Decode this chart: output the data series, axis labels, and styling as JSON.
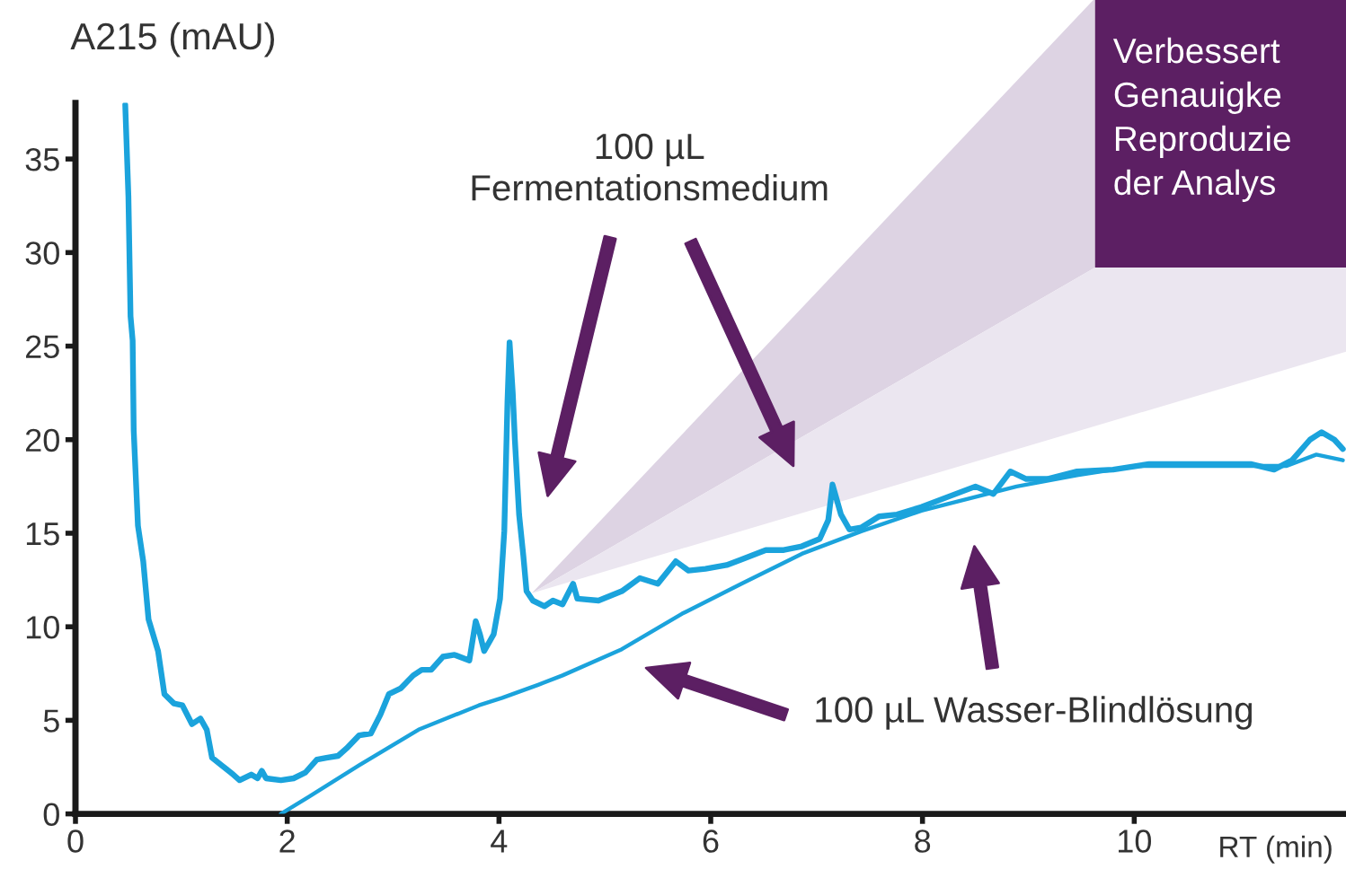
{
  "chart_data": {
    "type": "line",
    "ylabel": "A215 (mAU)",
    "xlabel": "RT (min)",
    "xlim": [
      0,
      12
    ],
    "xticks": [
      0,
      2,
      4,
      6,
      8,
      10
    ],
    "ylim": [
      0,
      38
    ],
    "yticks": [
      0,
      5,
      10,
      15,
      20,
      25,
      30,
      35
    ],
    "grid": false,
    "legend": false,
    "annotations": [
      "Verbessert\nGenauigke\nReproduzie\nder Analys",
      "100 µL\nFermentationsmedium",
      "100 µL Wasser-Blindlösung"
    ],
    "series": [
      {
        "color": "#1ba3dc",
        "x": [
          0.47,
          0.5,
          0.52,
          0.54,
          0.55,
          0.59,
          0.64,
          0.69,
          0.78,
          0.84,
          0.93,
          1.01,
          1.1,
          1.18,
          1.24,
          1.29,
          1.38,
          1.49,
          1.55,
          1.66,
          1.72,
          1.76,
          1.8,
          1.94,
          2.06,
          2.17,
          2.28,
          2.37,
          2.48,
          2.56,
          2.68,
          2.79,
          2.88,
          2.96,
          3.07,
          3.19,
          3.27,
          3.36,
          3.47,
          3.58,
          3.72,
          3.78,
          3.82,
          3.86,
          3.95,
          4.01,
          4.05,
          4.08,
          4.1,
          4.13,
          4.15,
          4.19,
          4.23,
          4.26,
          4.32,
          4.43,
          4.51,
          4.6,
          4.7,
          4.74,
          4.94,
          5.16,
          5.33,
          5.5,
          5.67,
          5.79,
          5.95,
          6.15,
          6.29,
          6.52,
          6.69,
          6.86,
          7.03,
          7.11,
          7.15,
          7.23,
          7.31,
          7.42,
          7.59,
          7.76,
          7.99,
          8.22,
          8.5,
          8.67,
          8.83,
          8.98,
          9.18,
          9.46,
          9.8,
          10.14,
          10.61,
          11.1,
          11.32,
          11.49,
          11.66,
          11.77,
          11.89,
          11.97
        ],
        "values": [
          37.9,
          33.0,
          26.6,
          25.3,
          20.5,
          15.4,
          13.5,
          10.4,
          8.7,
          6.4,
          5.9,
          5.8,
          4.8,
          5.1,
          4.5,
          3.0,
          2.6,
          2.1,
          1.8,
          2.1,
          1.9,
          2.3,
          1.9,
          1.8,
          1.9,
          2.2,
          2.9,
          3.0,
          3.1,
          3.5,
          4.2,
          4.3,
          5.3,
          6.4,
          6.7,
          7.4,
          7.7,
          7.7,
          8.4,
          8.5,
          8.2,
          10.3,
          9.6,
          8.7,
          9.6,
          11.5,
          15.1,
          22.0,
          25.2,
          22.5,
          20.0,
          16.0,
          13.8,
          11.9,
          11.4,
          11.1,
          11.4,
          11.2,
          12.3,
          11.5,
          11.4,
          11.9,
          12.6,
          12.3,
          13.5,
          13.0,
          13.1,
          13.3,
          13.6,
          14.1,
          14.1,
          14.3,
          14.7,
          15.7,
          17.6,
          16.0,
          15.2,
          15.3,
          15.9,
          16.0,
          16.4,
          16.9,
          17.5,
          17.1,
          18.3,
          17.9,
          17.9,
          18.3,
          18.4,
          18.7,
          18.7,
          18.7,
          18.4,
          18.9,
          20.0,
          20.4,
          20.0,
          19.5
        ]
      },
      {
        "color": "#1ba3dc",
        "x": [
          1.94,
          2.2,
          2.68,
          3.24,
          3.81,
          4.03,
          4.37,
          4.6,
          5.16,
          5.73,
          6.29,
          6.86,
          7.42,
          7.99,
          8.33,
          8.89,
          9.46,
          10.02,
          10.61,
          11.15,
          11.44,
          11.72,
          11.97
        ],
        "values": [
          0,
          0.9,
          2.6,
          4.5,
          5.8,
          6.2,
          6.9,
          7.4,
          8.8,
          10.7,
          12.3,
          13.9,
          15.1,
          16.2,
          16.7,
          17.5,
          18.1,
          18.6,
          18.6,
          18.6,
          18.6,
          19.2,
          18.9
        ]
      }
    ]
  }
}
